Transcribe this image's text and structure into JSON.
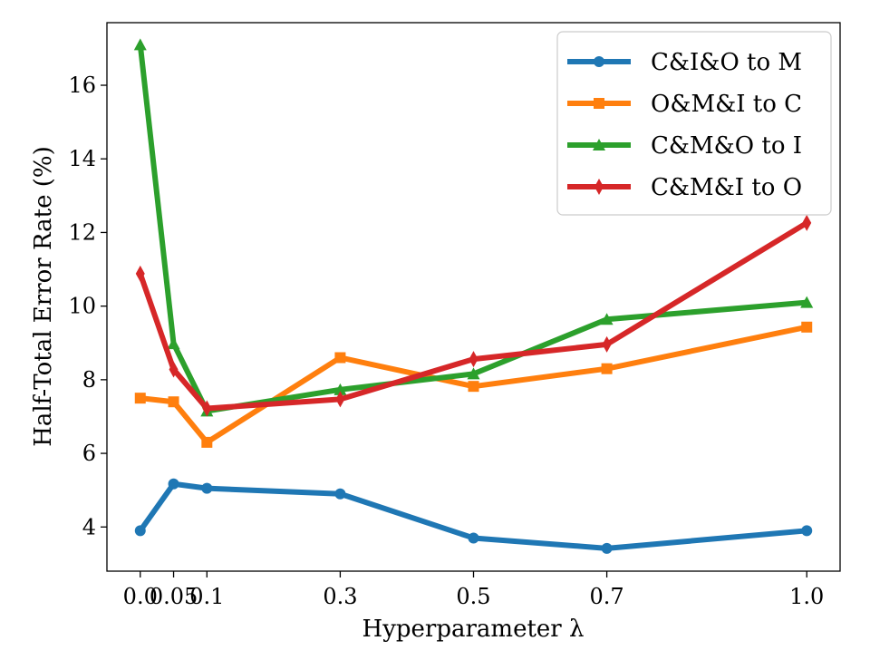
{
  "chart_data": {
    "type": "line",
    "xlabel": "Hyperparameter λ",
    "ylabel": "Half-Total Error Rate (%)",
    "x": [
      0.0,
      0.05,
      0.1,
      0.3,
      0.5,
      0.7,
      1.0
    ],
    "x_tick_labels": [
      "0.0",
      "0.05",
      "0.1",
      "0.3",
      "0.5",
      "0.7",
      "1.0"
    ],
    "y_ticks": [
      4,
      6,
      8,
      10,
      12,
      14,
      16
    ],
    "ylim": [
      2.8,
      17.7
    ],
    "grid": false,
    "legend_position": "top-right",
    "series": [
      {
        "name": "C&I&O to M",
        "color": "#1f77b4",
        "marker": "circle",
        "values": [
          3.9,
          5.17,
          5.05,
          4.9,
          3.7,
          3.42,
          3.9
        ]
      },
      {
        "name": "O&M&I to C",
        "color": "#ff7f0e",
        "marker": "square",
        "values": [
          7.5,
          7.4,
          6.3,
          8.6,
          7.82,
          8.3,
          9.43
        ]
      },
      {
        "name": "C&M&O to I",
        "color": "#2ca02c",
        "marker": "triangle",
        "values": [
          17.1,
          8.98,
          7.15,
          7.73,
          8.16,
          9.64,
          10.1
        ]
      },
      {
        "name": "C&M&I to O",
        "color": "#d62728",
        "marker": "diamond",
        "values": [
          10.88,
          8.28,
          7.22,
          7.47,
          8.56,
          8.96,
          12.26
        ]
      }
    ]
  }
}
